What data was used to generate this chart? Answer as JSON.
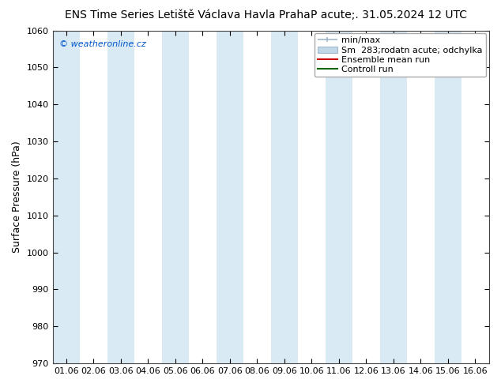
{
  "title_left": "ENS Time Series Letiště Václava Havla Praha",
  "title_right": "P acute;. 31.05.2024 12 UTC",
  "ylabel": "Surface Pressure (hPa)",
  "ylim": [
    970,
    1060
  ],
  "yticks": [
    970,
    980,
    990,
    1000,
    1010,
    1020,
    1030,
    1040,
    1050,
    1060
  ],
  "xtick_labels": [
    "01.06",
    "02.06",
    "03.06",
    "04.06",
    "05.06",
    "06.06",
    "07.06",
    "08.06",
    "09.06",
    "10.06",
    "11.06",
    "12.06",
    "13.06",
    "14.06",
    "15.06",
    "16.06"
  ],
  "band_color": "#daeaf5",
  "bg_color": "#ffffff",
  "watermark": "© weatheronline.cz",
  "watermark_color": "#0055cc",
  "legend_label_minmax": "min/max",
  "legend_label_std": "Sm  283;rodatn acute; odchylka",
  "legend_label_ens": "Ensemble mean run",
  "legend_label_ctrl": "Controll run",
  "color_minmax": "#a0b8cc",
  "color_std_face": "#c0d8e8",
  "color_std_edge": "#a0b8cc",
  "color_ens": "#cc0000",
  "color_ctrl": "#006600",
  "title_fontsize": 10,
  "axis_label_fontsize": 9,
  "tick_fontsize": 8,
  "legend_fontsize": 8
}
